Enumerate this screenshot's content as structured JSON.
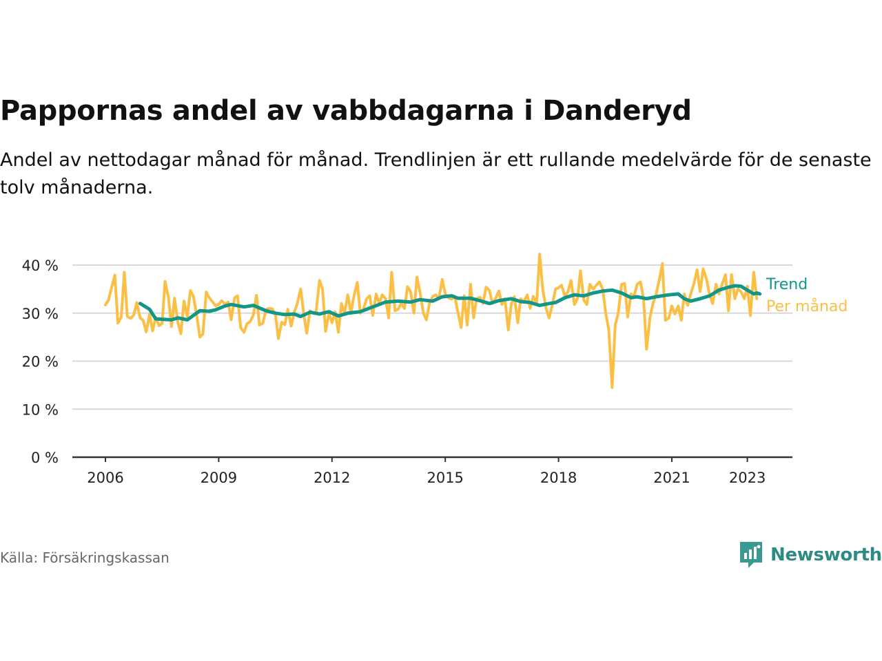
{
  "title": "Pappornas andel av vabbdagarna i Danderyd",
  "subtitle": "Andel av nettodagar månad för månad. Trendlinjen är ett rullande medelvärde för de senaste tolv månaderna.",
  "source": "Källa: Försäkringskassan",
  "brand": {
    "name": "Newsworthy",
    "icon": "newsworthy-logo-icon"
  },
  "colors": {
    "trend": "#13968a",
    "monthly": "#fbbf45",
    "grid": "#d9d9d9",
    "axis": "#333333",
    "text": "#222222"
  },
  "chart_data": {
    "type": "line",
    "title": "Pappornas andel av vabbdagarna i Danderyd",
    "xlabel": "",
    "ylabel": "",
    "ylim": [
      0,
      40
    ],
    "yticks": [
      0,
      10,
      20,
      30,
      40
    ],
    "ytick_labels": [
      "0 %",
      "10 %",
      "20 %",
      "30 %",
      "40 %"
    ],
    "xticks": [
      2006,
      2009,
      2012,
      2015,
      2018,
      2021,
      2023
    ],
    "xtick_labels": [
      "2006",
      "2009",
      "2012",
      "2015",
      "2018",
      "2021",
      "2023"
    ],
    "grid": true,
    "legend": "direct labels at right end of lines",
    "series": [
      {
        "name": "Per månad",
        "color": "#fbbf45",
        "points": [
          [
            2006.0,
            31.7
          ],
          [
            2006.08,
            32.7
          ],
          [
            2006.17,
            35.5
          ],
          [
            2006.25,
            37.9
          ],
          [
            2006.33,
            27.9
          ],
          [
            2006.42,
            29.2
          ],
          [
            2006.5,
            38.5
          ],
          [
            2006.58,
            29.3
          ],
          [
            2006.67,
            28.9
          ],
          [
            2006.75,
            29.6
          ],
          [
            2006.83,
            32.2
          ],
          [
            2006.92,
            29.0
          ],
          [
            2007.0,
            28.5
          ],
          [
            2007.08,
            26.1
          ],
          [
            2007.17,
            29.8
          ],
          [
            2007.25,
            26.3
          ],
          [
            2007.33,
            29.1
          ],
          [
            2007.42,
            27.4
          ],
          [
            2007.5,
            27.8
          ],
          [
            2007.58,
            36.6
          ],
          [
            2007.67,
            33.2
          ],
          [
            2007.75,
            27.2
          ],
          [
            2007.83,
            33.1
          ],
          [
            2007.92,
            28.0
          ],
          [
            2008.0,
            25.7
          ],
          [
            2008.08,
            32.5
          ],
          [
            2008.17,
            29.3
          ],
          [
            2008.25,
            34.7
          ],
          [
            2008.33,
            33.5
          ],
          [
            2008.42,
            29.5
          ],
          [
            2008.5,
            25.0
          ],
          [
            2008.58,
            25.6
          ],
          [
            2008.67,
            34.4
          ],
          [
            2008.75,
            33.2
          ],
          [
            2008.83,
            32.4
          ],
          [
            2008.92,
            31.5
          ],
          [
            2009.0,
            31.8
          ],
          [
            2009.08,
            32.6
          ],
          [
            2009.17,
            31.8
          ],
          [
            2009.25,
            32.3
          ],
          [
            2009.33,
            28.6
          ],
          [
            2009.42,
            33.2
          ],
          [
            2009.5,
            33.6
          ],
          [
            2009.58,
            27.0
          ],
          [
            2009.67,
            26.0
          ],
          [
            2009.75,
            27.8
          ],
          [
            2009.83,
            28.2
          ],
          [
            2009.92,
            29.6
          ],
          [
            2010.0,
            33.7
          ],
          [
            2010.08,
            27.5
          ],
          [
            2010.17,
            27.9
          ],
          [
            2010.25,
            30.7
          ],
          [
            2010.33,
            31.0
          ],
          [
            2010.42,
            30.9
          ],
          [
            2010.5,
            29.8
          ],
          [
            2010.58,
            24.7
          ],
          [
            2010.67,
            28.1
          ],
          [
            2010.75,
            27.6
          ],
          [
            2010.83,
            30.8
          ],
          [
            2010.92,
            27.3
          ],
          [
            2011.0,
            30.2
          ],
          [
            2011.08,
            32.0
          ],
          [
            2011.17,
            35.0
          ],
          [
            2011.25,
            30.0
          ],
          [
            2011.33,
            25.8
          ],
          [
            2011.42,
            30.5
          ],
          [
            2011.5,
            30.0
          ],
          [
            2011.58,
            30.3
          ],
          [
            2011.67,
            36.8
          ],
          [
            2011.75,
            35.0
          ],
          [
            2011.83,
            26.2
          ],
          [
            2011.92,
            30.0
          ],
          [
            2012.0,
            28.0
          ],
          [
            2012.08,
            30.3
          ],
          [
            2012.17,
            26.0
          ],
          [
            2012.25,
            32.0
          ],
          [
            2012.33,
            30.0
          ],
          [
            2012.42,
            33.8
          ],
          [
            2012.5,
            30.0
          ],
          [
            2012.58,
            33.5
          ],
          [
            2012.67,
            36.4
          ],
          [
            2012.75,
            30.0
          ],
          [
            2012.83,
            30.8
          ],
          [
            2012.92,
            33.0
          ],
          [
            2013.0,
            33.6
          ],
          [
            2013.08,
            29.5
          ],
          [
            2013.17,
            34.0
          ],
          [
            2013.25,
            32.0
          ],
          [
            2013.33,
            33.8
          ],
          [
            2013.42,
            33.0
          ],
          [
            2013.5,
            29.0
          ],
          [
            2013.58,
            38.5
          ],
          [
            2013.67,
            30.5
          ],
          [
            2013.75,
            30.8
          ],
          [
            2013.83,
            32.0
          ],
          [
            2013.92,
            31.0
          ],
          [
            2014.0,
            35.5
          ],
          [
            2014.08,
            34.5
          ],
          [
            2014.17,
            30.0
          ],
          [
            2014.25,
            37.5
          ],
          [
            2014.33,
            34.4
          ],
          [
            2014.42,
            30.0
          ],
          [
            2014.5,
            28.6
          ],
          [
            2014.58,
            32.0
          ],
          [
            2014.67,
            33.5
          ],
          [
            2014.75,
            33.8
          ],
          [
            2014.83,
            33.0
          ],
          [
            2014.92,
            37.0
          ],
          [
            2015.0,
            34.0
          ],
          [
            2015.08,
            33.2
          ],
          [
            2015.17,
            32.9
          ],
          [
            2015.25,
            33.5
          ],
          [
            2015.33,
            30.4
          ],
          [
            2015.42,
            27.0
          ],
          [
            2015.5,
            33.6
          ],
          [
            2015.58,
            27.5
          ],
          [
            2015.67,
            36.0
          ],
          [
            2015.75,
            29.0
          ],
          [
            2015.83,
            33.0
          ],
          [
            2015.92,
            33.3
          ],
          [
            2016.0,
            32.0
          ],
          [
            2016.08,
            35.4
          ],
          [
            2016.17,
            34.7
          ],
          [
            2016.25,
            32.0
          ],
          [
            2016.33,
            33.0
          ],
          [
            2016.42,
            34.6
          ],
          [
            2016.5,
            31.8
          ],
          [
            2016.58,
            33.0
          ],
          [
            2016.67,
            26.5
          ],
          [
            2016.75,
            32.0
          ],
          [
            2016.83,
            33.4
          ],
          [
            2016.92,
            28.0
          ],
          [
            2017.0,
            33.0
          ],
          [
            2017.08,
            32.3
          ],
          [
            2017.17,
            33.8
          ],
          [
            2017.25,
            31.0
          ],
          [
            2017.33,
            33.5
          ],
          [
            2017.42,
            32.0
          ],
          [
            2017.5,
            42.3
          ],
          [
            2017.58,
            35.0
          ],
          [
            2017.67,
            31.0
          ],
          [
            2017.75,
            29.0
          ],
          [
            2017.83,
            31.5
          ],
          [
            2017.92,
            35.0
          ],
          [
            2018.0,
            35.3
          ],
          [
            2018.08,
            35.8
          ],
          [
            2018.17,
            33.5
          ],
          [
            2018.25,
            34.5
          ],
          [
            2018.33,
            36.8
          ],
          [
            2018.42,
            31.8
          ],
          [
            2018.5,
            33.0
          ],
          [
            2018.58,
            38.8
          ],
          [
            2018.67,
            32.7
          ],
          [
            2018.75,
            31.8
          ],
          [
            2018.83,
            36.0
          ],
          [
            2018.92,
            35.0
          ],
          [
            2019.0,
            35.8
          ],
          [
            2019.08,
            36.5
          ],
          [
            2019.17,
            35.0
          ],
          [
            2019.25,
            30.0
          ],
          [
            2019.33,
            26.5
          ],
          [
            2019.42,
            14.5
          ],
          [
            2019.5,
            27.5
          ],
          [
            2019.58,
            30.0
          ],
          [
            2019.67,
            36.0
          ],
          [
            2019.75,
            36.2
          ],
          [
            2019.83,
            29.2
          ],
          [
            2019.92,
            34.0
          ],
          [
            2020.0,
            33.5
          ],
          [
            2020.08,
            36.0
          ],
          [
            2020.17,
            36.5
          ],
          [
            2020.25,
            33.0
          ],
          [
            2020.33,
            22.5
          ],
          [
            2020.42,
            29.0
          ],
          [
            2020.5,
            32.0
          ],
          [
            2020.58,
            33.8
          ],
          [
            2020.67,
            37.0
          ],
          [
            2020.75,
            40.3
          ],
          [
            2020.83,
            28.5
          ],
          [
            2020.92,
            29.0
          ],
          [
            2021.0,
            31.5
          ],
          [
            2021.08,
            29.8
          ],
          [
            2021.17,
            31.5
          ],
          [
            2021.25,
            28.5
          ],
          [
            2021.33,
            34.0
          ],
          [
            2021.42,
            31.6
          ],
          [
            2021.5,
            34.0
          ],
          [
            2021.58,
            36.0
          ],
          [
            2021.67,
            39.0
          ],
          [
            2021.75,
            34.5
          ],
          [
            2021.83,
            39.2
          ],
          [
            2021.92,
            37.0
          ],
          [
            2022.0,
            33.8
          ],
          [
            2022.08,
            32.0
          ],
          [
            2022.17,
            36.0
          ],
          [
            2022.25,
            34.0
          ],
          [
            2022.33,
            36.0
          ],
          [
            2022.42,
            38.0
          ],
          [
            2022.5,
            30.5
          ],
          [
            2022.58,
            38.0
          ],
          [
            2022.67,
            33.0
          ],
          [
            2022.75,
            35.0
          ],
          [
            2022.83,
            34.5
          ],
          [
            2022.92,
            33.0
          ],
          [
            2023.0,
            35.6
          ],
          [
            2023.08,
            29.5
          ],
          [
            2023.17,
            38.5
          ],
          [
            2023.25,
            33.0
          ]
        ]
      },
      {
        "name": "Trend",
        "color": "#13968a",
        "points": [
          [
            2006.92,
            32.0
          ],
          [
            2007.17,
            30.8
          ],
          [
            2007.33,
            28.8
          ],
          [
            2007.75,
            28.6
          ],
          [
            2007.92,
            29.0
          ],
          [
            2008.17,
            28.6
          ],
          [
            2008.5,
            30.5
          ],
          [
            2008.75,
            30.4
          ],
          [
            2008.92,
            30.7
          ],
          [
            2009.17,
            31.5
          ],
          [
            2009.33,
            31.8
          ],
          [
            2009.67,
            31.3
          ],
          [
            2009.92,
            31.6
          ],
          [
            2010.25,
            30.5
          ],
          [
            2010.5,
            30.0
          ],
          [
            2010.75,
            29.7
          ],
          [
            2011.0,
            29.8
          ],
          [
            2011.17,
            29.3
          ],
          [
            2011.42,
            30.2
          ],
          [
            2011.67,
            29.8
          ],
          [
            2011.92,
            30.3
          ],
          [
            2012.17,
            29.4
          ],
          [
            2012.42,
            30.0
          ],
          [
            2012.75,
            30.3
          ],
          [
            2013.08,
            31.3
          ],
          [
            2013.42,
            32.3
          ],
          [
            2013.75,
            32.5
          ],
          [
            2014.08,
            32.3
          ],
          [
            2014.33,
            32.8
          ],
          [
            2014.67,
            32.5
          ],
          [
            2014.92,
            33.4
          ],
          [
            2015.17,
            33.6
          ],
          [
            2015.33,
            33.1
          ],
          [
            2015.67,
            33.1
          ],
          [
            2016.0,
            32.4
          ],
          [
            2016.17,
            32.0
          ],
          [
            2016.42,
            32.6
          ],
          [
            2016.75,
            33.0
          ],
          [
            2017.0,
            32.4
          ],
          [
            2017.25,
            32.2
          ],
          [
            2017.5,
            31.6
          ],
          [
            2017.75,
            32.0
          ],
          [
            2017.92,
            32.2
          ],
          [
            2018.17,
            33.2
          ],
          [
            2018.42,
            33.8
          ],
          [
            2018.67,
            33.6
          ],
          [
            2018.92,
            34.2
          ],
          [
            2019.17,
            34.6
          ],
          [
            2019.42,
            34.8
          ],
          [
            2019.67,
            34.2
          ],
          [
            2019.92,
            33.2
          ],
          [
            2020.08,
            33.4
          ],
          [
            2020.33,
            33.0
          ],
          [
            2020.58,
            33.4
          ],
          [
            2020.92,
            33.8
          ],
          [
            2021.17,
            34.0
          ],
          [
            2021.33,
            33.0
          ],
          [
            2021.5,
            32.5
          ],
          [
            2021.75,
            33.0
          ],
          [
            2022.0,
            33.6
          ],
          [
            2022.25,
            34.8
          ],
          [
            2022.5,
            35.4
          ],
          [
            2022.67,
            35.7
          ],
          [
            2022.83,
            35.6
          ],
          [
            2023.0,
            34.8
          ],
          [
            2023.17,
            34.0
          ],
          [
            2023.25,
            34.2
          ],
          [
            2023.33,
            34.0
          ]
        ]
      }
    ]
  }
}
